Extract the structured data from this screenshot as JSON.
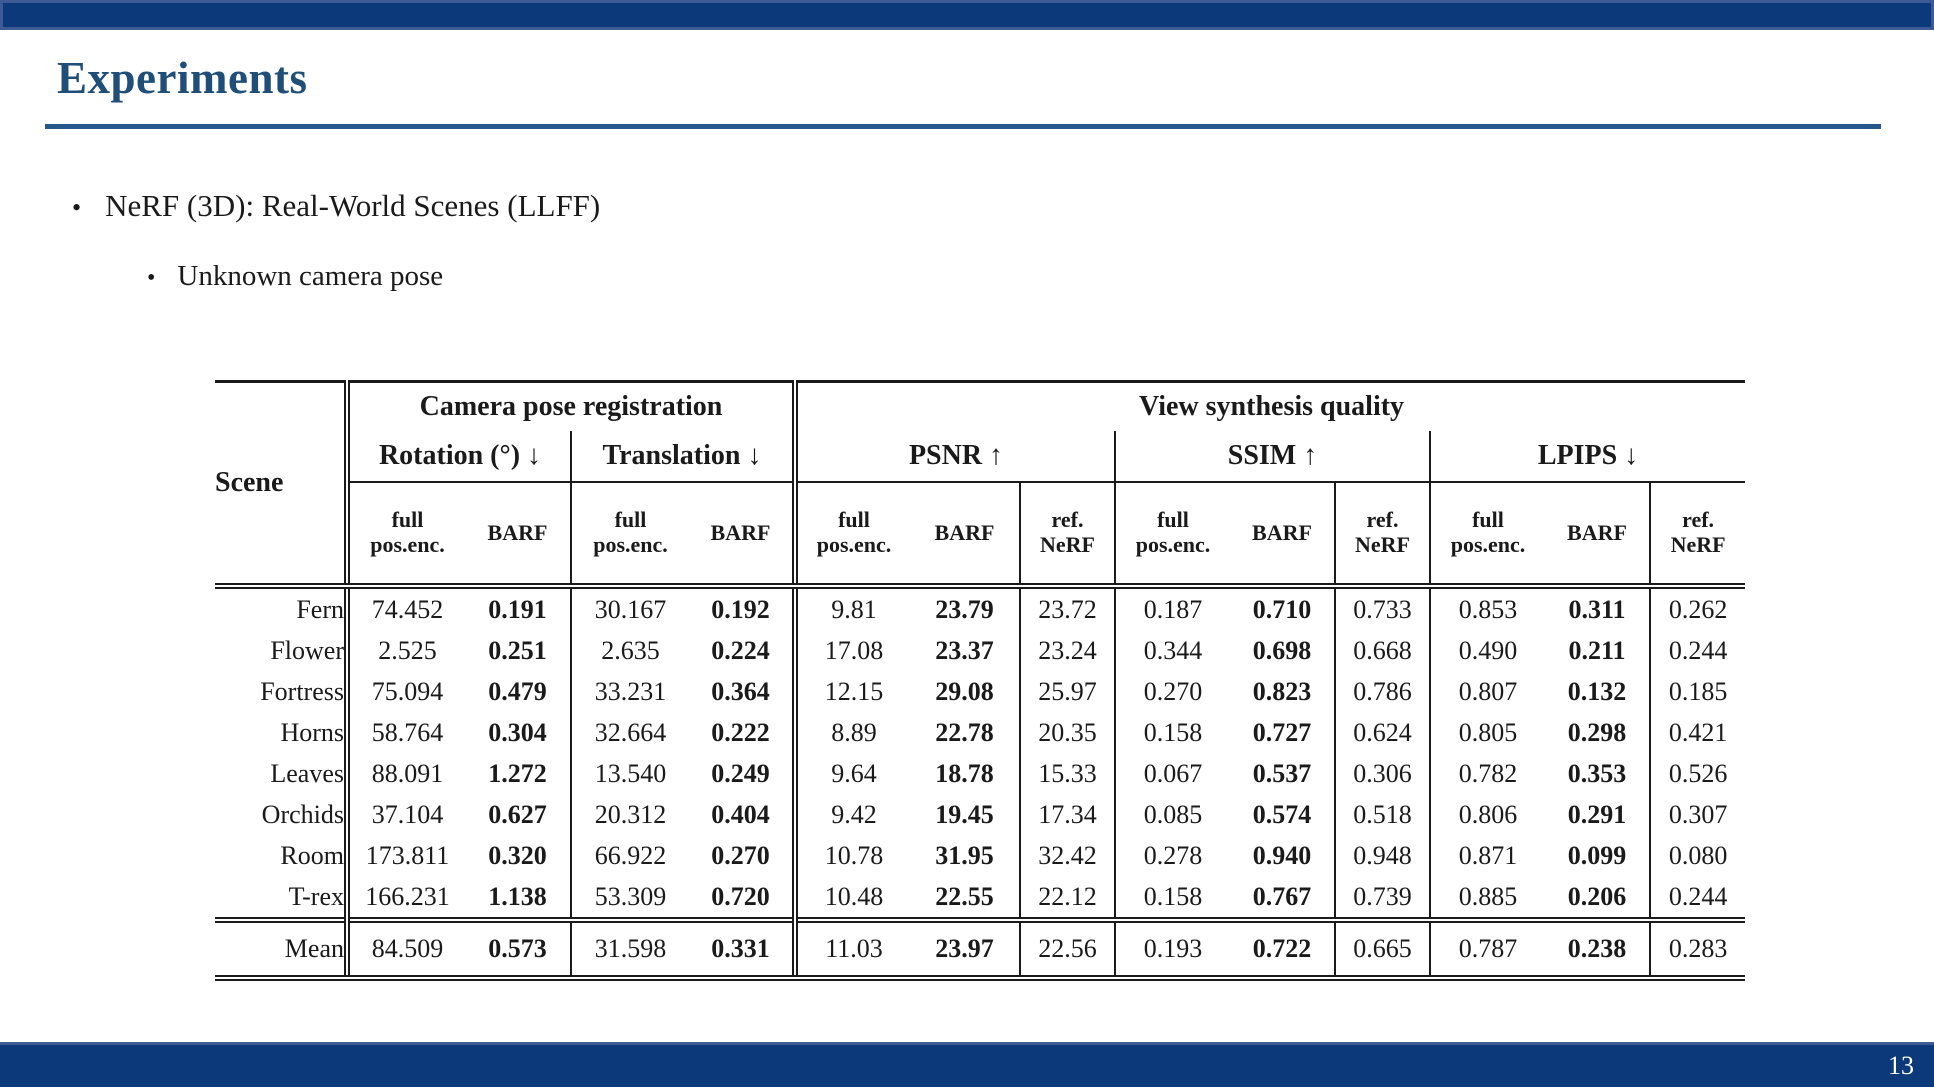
{
  "slide": {
    "title": "Experiments",
    "page_number": "13",
    "colors": {
      "accent": "#1F4E79",
      "bar_fill": "#0B3979",
      "bar_border": "#3D5A96",
      "rule": "#27588C",
      "footer_text": "#FFFFFF",
      "table_ink": "#1A1A1A"
    }
  },
  "bullets": [
    {
      "marker": "•",
      "label": "NeRF (3D): Real-World Scenes (LLFF)"
    },
    {
      "marker": "•",
      "label": "Unknown camera pose"
    }
  ],
  "table": {
    "scene_header": "Scene",
    "group_headers": [
      "Camera pose registration",
      "View synthesis quality"
    ],
    "metric_headers": [
      "Rotation (°) ↓",
      "Translation ↓",
      "PSNR ↑",
      "SSIM ↑",
      "LPIPS ↓"
    ],
    "sub_headers": {
      "full": "full pos.enc.",
      "barf": "BARF",
      "ref": "ref. NeRF"
    },
    "rows": [
      {
        "scene": "Fern",
        "values": [
          "74.452",
          "0.191",
          "30.167",
          "0.192",
          "9.81",
          "23.79",
          "23.72",
          "0.187",
          "0.710",
          "0.733",
          "0.853",
          "0.311",
          "0.262"
        ]
      },
      {
        "scene": "Flower",
        "values": [
          "2.525",
          "0.251",
          "2.635",
          "0.224",
          "17.08",
          "23.37",
          "23.24",
          "0.344",
          "0.698",
          "0.668",
          "0.490",
          "0.211",
          "0.244"
        ]
      },
      {
        "scene": "Fortress",
        "values": [
          "75.094",
          "0.479",
          "33.231",
          "0.364",
          "12.15",
          "29.08",
          "25.97",
          "0.270",
          "0.823",
          "0.786",
          "0.807",
          "0.132",
          "0.185"
        ]
      },
      {
        "scene": "Horns",
        "values": [
          "58.764",
          "0.304",
          "32.664",
          "0.222",
          "8.89",
          "22.78",
          "20.35",
          "0.158",
          "0.727",
          "0.624",
          "0.805",
          "0.298",
          "0.421"
        ]
      },
      {
        "scene": "Leaves",
        "values": [
          "88.091",
          "1.272",
          "13.540",
          "0.249",
          "9.64",
          "18.78",
          "15.33",
          "0.067",
          "0.537",
          "0.306",
          "0.782",
          "0.353",
          "0.526"
        ]
      },
      {
        "scene": "Orchids",
        "values": [
          "37.104",
          "0.627",
          "20.312",
          "0.404",
          "9.42",
          "19.45",
          "17.34",
          "0.085",
          "0.574",
          "0.518",
          "0.806",
          "0.291",
          "0.307"
        ]
      },
      {
        "scene": "Room",
        "values": [
          "173.811",
          "0.320",
          "66.922",
          "0.270",
          "10.78",
          "31.95",
          "32.42",
          "0.278",
          "0.940",
          "0.948",
          "0.871",
          "0.099",
          "0.080"
        ]
      },
      {
        "scene": "T-rex",
        "values": [
          "166.231",
          "1.138",
          "53.309",
          "0.720",
          "10.48",
          "22.55",
          "22.12",
          "0.158",
          "0.767",
          "0.739",
          "0.885",
          "0.206",
          "0.244"
        ]
      }
    ],
    "mean": {
      "scene": "Mean",
      "values": [
        "84.509",
        "0.573",
        "31.598",
        "0.331",
        "11.03",
        "23.97",
        "22.56",
        "0.193",
        "0.722",
        "0.665",
        "0.787",
        "0.238",
        "0.283"
      ]
    }
  }
}
